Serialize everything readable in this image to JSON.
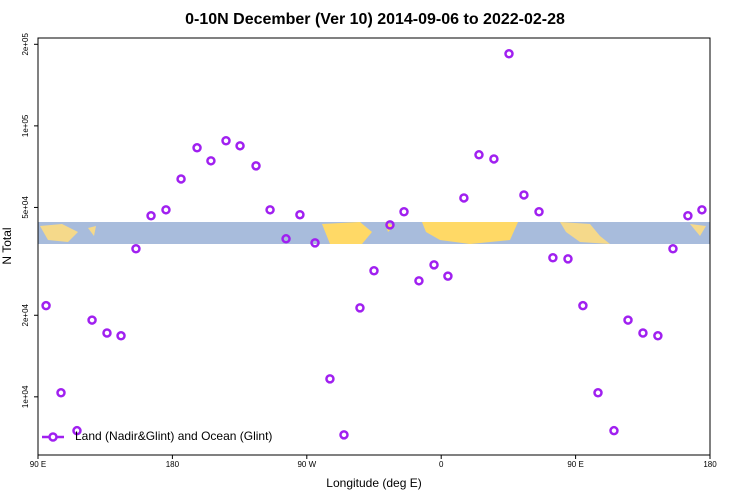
{
  "chart_data": {
    "type": "scatter",
    "title": "0-10N December (Ver 10)   2014-09-06 to 2022-02-28",
    "x_label": "Longitude (deg E)",
    "y_label": "N Total",
    "yscale": "log",
    "xlim": [
      90,
      540
    ],
    "ylim": [
      6100,
      211000
    ],
    "xticks": [
      {
        "value": 90,
        "label": "90 E"
      },
      180,
      {
        "value": 270,
        "label": "90 W"
      },
      {
        "value": 360,
        "label": "0"
      },
      {
        "value": 450,
        "label": "90 E"
      },
      {
        "value": 540,
        "label": "180"
      }
    ],
    "yticks": [
      {
        "value": 10000,
        "label": "1e+04"
      },
      {
        "value": 20000,
        "label": "2e+04"
      },
      {
        "value": 50000,
        "label": "5e+04"
      },
      {
        "value": 100000,
        "label": "1e+05"
      },
      {
        "value": 200000,
        "label": "2e+05"
      }
    ],
    "legend_position": "bottom-left",
    "series": [
      {
        "name": "Land (Nadir&Glint) and Ocean (Glint)",
        "color": "#a020f0",
        "x": [
          95.4,
          105.4,
          116.1,
          126.2,
          136.2,
          145.6,
          155.6,
          165.7,
          175.7,
          185.8,
          196.5,
          205.8,
          215.9,
          225.3,
          236.0,
          245.4,
          256.1,
          265.4,
          275.5,
          285.5,
          294.9,
          305.6,
          315.0,
          325.7,
          335.1,
          345.1,
          355.2,
          364.5,
          375.2,
          385.3,
          395.3,
          405.4,
          415.4,
          425.5,
          434.8,
          444.9,
          454.9,
          465.0,
          475.7,
          485.1,
          495.1,
          505.1,
          515.2,
          525.2,
          534.6
        ],
        "values": [
          21700,
          10350,
          7500,
          19200,
          17200,
          16800,
          35200,
          46600,
          49000,
          63700,
          83000,
          74300,
          88100,
          84400,
          71200,
          49000,
          38300,
          47000,
          37000,
          11650,
          7240,
          21300,
          29200,
          43100,
          48200,
          26800,
          30700,
          27900,
          54200,
          78200,
          75500,
          184500,
          55600,
          48200,
          32600,
          32300,
          21700,
          10350,
          7500,
          19200,
          17200,
          16800,
          35200,
          46600,
          49000
        ]
      }
    ]
  }
}
